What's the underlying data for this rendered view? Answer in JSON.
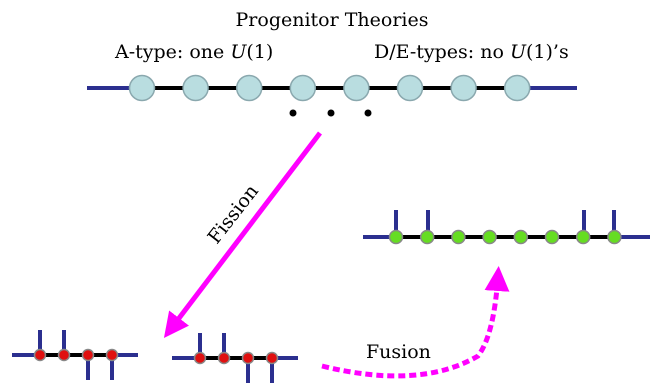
{
  "title": "Progenitor Theories",
  "a_type": {
    "prefix": "A-type: one ",
    "math": "U",
    "suffix": "(1)"
  },
  "de_type": {
    "prefix": "D/E-types: no ",
    "math": "U",
    "suffix": "(1)’s"
  },
  "ellipsis": "•   •   •",
  "fission_label": "Fission",
  "fusion_label": "Fusion",
  "colors": {
    "line": "#000000",
    "end_segments": "#2b2f8f",
    "progenitor_node": "#b9dde0",
    "progenitor_node_stroke": "#8aa8ae",
    "red_node": "#e01010",
    "green_node": "#66dd22",
    "fission_arrow": "#ff00ff",
    "fusion_arrow": "#ff00ff"
  },
  "progenitor_node_count": 8,
  "fused_node_count": 8,
  "left_fission_node_count": 4,
  "right_fission_node_count": 4
}
